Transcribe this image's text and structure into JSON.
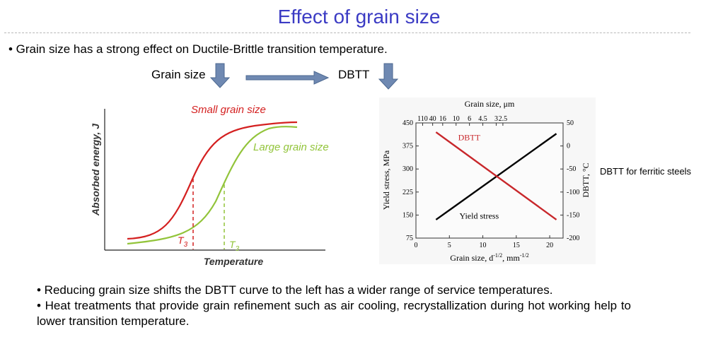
{
  "title": "Effect of grain size",
  "bullet_top": "• Grain size has a strong effect on Ductile-Brittle transition temperature.",
  "flow": {
    "grain_size_label": "Grain size",
    "dbtt_label": "DBTT"
  },
  "left_diagram": {
    "ylabel": "Absorbed energy, J",
    "xlabel": "Temperature",
    "small_label": "Small grain size",
    "large_label": "Large grain size",
    "t3_label": "T",
    "t3_sub": "3",
    "small_color": "#d42020",
    "large_color": "#92c43a"
  },
  "chart_data": {
    "type": "line",
    "x_label": "Grain size, d-1/2, mm-1/2",
    "x_label_main": "Grain size, d",
    "x_label_exp1": "-1/2",
    "x_label_mid": ", mm",
    "x_label_exp2": "-1/2",
    "x_ticks": [
      0,
      5,
      10,
      15,
      20
    ],
    "x_range": [
      0,
      22
    ],
    "top_axis_label": "Grain size, μm",
    "top_ticks": [
      "110",
      "40",
      "16",
      "10",
      "6",
      "4.5",
      "3",
      "2.5"
    ],
    "top_tick_positions": [
      1,
      2.5,
      4,
      6,
      8,
      10,
      12,
      13
    ],
    "left_axis_label": "Yield stress, MPa",
    "left_ticks": [
      75,
      150,
      225,
      300,
      375,
      450
    ],
    "left_range": [
      75,
      450
    ],
    "right_axis_label": "DBTT, °C",
    "right_ticks": [
      50,
      0,
      -50,
      -100,
      -150,
      -200
    ],
    "right_range": [
      -200,
      50
    ],
    "series": [
      {
        "name": "Yield stress",
        "axis": "left",
        "color": "#000000",
        "x": [
          3,
          21
        ],
        "y": [
          135,
          415
        ]
      },
      {
        "name": "DBTT",
        "axis": "right",
        "color": "#c8272b",
        "x": [
          3,
          21
        ],
        "y": [
          30,
          -160
        ]
      }
    ],
    "side_label": "DBTT for ferritic steels"
  },
  "bullets_bottom": [
    "• Reducing grain size shifts the DBTT curve to the left  has a wider range of service temperatures.",
    "•  Heat  treatments  that  provide  grain  refinement  such  as  air  cooling,  recrystallization  during  hot working help to lower transition temperature."
  ]
}
